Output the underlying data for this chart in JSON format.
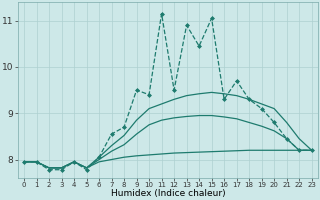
{
  "xlabel": "Humidex (Indice chaleur)",
  "ylabel": "",
  "bg_color": "#cde8e8",
  "line_color": "#1e7b6e",
  "grid_color": "#aed0d0",
  "xlim": [
    -0.5,
    23.5
  ],
  "ylim": [
    7.6,
    11.4
  ],
  "yticks": [
    8,
    9,
    10,
    11
  ],
  "xticks": [
    0,
    1,
    2,
    3,
    4,
    5,
    6,
    7,
    8,
    9,
    10,
    11,
    12,
    13,
    14,
    15,
    16,
    17,
    18,
    19,
    20,
    21,
    22,
    23
  ],
  "series": [
    {
      "x": [
        0,
        1,
        2,
        3,
        4,
        5,
        6,
        7,
        8,
        9,
        10,
        11,
        12,
        13,
        14,
        15,
        16,
        17,
        18,
        19,
        20,
        21,
        22,
        23
      ],
      "y": [
        7.95,
        7.95,
        7.78,
        7.78,
        7.95,
        7.78,
        8.05,
        8.55,
        8.7,
        9.5,
        9.4,
        11.15,
        9.5,
        10.9,
        10.45,
        11.05,
        9.3,
        9.7,
        9.3,
        9.1,
        8.8,
        8.45,
        8.2,
        8.2
      ],
      "marker": "D",
      "markersize": 2.0,
      "linewidth": 0.9,
      "linestyle": "--"
    },
    {
      "x": [
        0,
        1,
        2,
        3,
        4,
        5,
        6,
        7,
        8,
        9,
        10,
        11,
        12,
        13,
        14,
        15,
        16,
        17,
        18,
        19,
        20,
        21,
        22,
        23
      ],
      "y": [
        7.95,
        7.95,
        7.82,
        7.82,
        7.95,
        7.82,
        8.05,
        8.3,
        8.52,
        8.85,
        9.1,
        9.2,
        9.3,
        9.38,
        9.42,
        9.45,
        9.42,
        9.38,
        9.3,
        9.2,
        9.1,
        8.8,
        8.45,
        8.2
      ],
      "marker": "None",
      "markersize": 0,
      "linewidth": 0.9,
      "linestyle": "-"
    },
    {
      "x": [
        0,
        1,
        2,
        3,
        4,
        5,
        6,
        7,
        8,
        9,
        10,
        11,
        12,
        13,
        14,
        15,
        16,
        17,
        18,
        19,
        20,
        21,
        22,
        23
      ],
      "y": [
        7.95,
        7.95,
        7.82,
        7.82,
        7.95,
        7.82,
        8.0,
        8.18,
        8.32,
        8.55,
        8.75,
        8.85,
        8.9,
        8.93,
        8.95,
        8.95,
        8.92,
        8.88,
        8.8,
        8.72,
        8.62,
        8.45,
        8.2,
        8.2
      ],
      "marker": "None",
      "markersize": 0,
      "linewidth": 0.9,
      "linestyle": "-"
    },
    {
      "x": [
        0,
        1,
        2,
        3,
        4,
        5,
        6,
        7,
        8,
        9,
        10,
        11,
        12,
        13,
        14,
        15,
        16,
        17,
        18,
        19,
        20,
        21,
        22,
        23
      ],
      "y": [
        7.95,
        7.95,
        7.82,
        7.82,
        7.95,
        7.82,
        7.95,
        8.0,
        8.05,
        8.08,
        8.1,
        8.12,
        8.14,
        8.15,
        8.16,
        8.17,
        8.18,
        8.19,
        8.2,
        8.2,
        8.2,
        8.2,
        8.2,
        8.2
      ],
      "marker": "None",
      "markersize": 0,
      "linewidth": 0.9,
      "linestyle": "-"
    }
  ]
}
